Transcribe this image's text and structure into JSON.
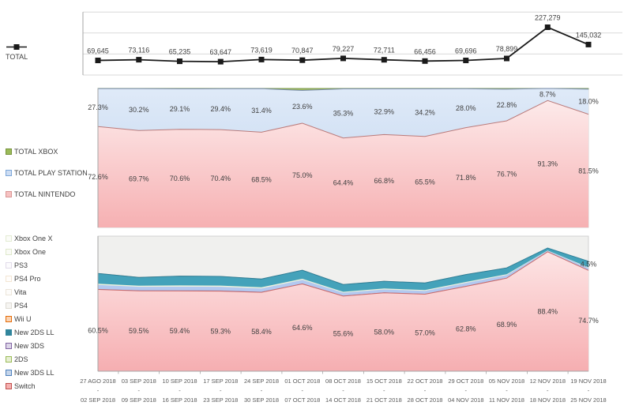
{
  "weeks": [
    {
      "from": "27 AGO 2018",
      "to": "02 SEP 2018"
    },
    {
      "from": "03 SEP 2018",
      "to": "09 SEP 2018"
    },
    {
      "from": "10 SEP 2018",
      "to": "16 SEP 2018"
    },
    {
      "from": "17 SEP 2018",
      "to": "23 SEP 2018"
    },
    {
      "from": "24 SEP 2018",
      "to": "30 SEP 2018"
    },
    {
      "from": "01 OCT 2018",
      "to": "07 OCT 2018"
    },
    {
      "from": "08 OCT 2018",
      "to": "14 OCT 2018"
    },
    {
      "from": "15 OCT 2018",
      "to": "21 OCT 2018"
    },
    {
      "from": "22 OCT 2018",
      "to": "28 OCT 2018"
    },
    {
      "from": "29 OCT 2018",
      "to": "04 NOV 2018"
    },
    {
      "from": "05 NOV 2018",
      "to": "11 NOV 2018"
    },
    {
      "from": "12 NOV 2018",
      "to": "18 NOV 2018"
    },
    {
      "from": "19 NOV 2018",
      "to": "25 NOV 2018"
    }
  ],
  "colors": {
    "grid": "#d9d9d9",
    "axis": "#a6a6a6",
    "plot_border": "#c9c9c9",
    "data_label": "#404040",
    "date_label": "#595959"
  },
  "chart_data": [
    {
      "id": "total-units",
      "type": "line",
      "legend_label": "TOTAL",
      "line_color": "#1a1a1a",
      "marker": "square",
      "categories": [
        "27 AGO 2018 - 02 SEP 2018",
        "03 SEP 2018 - 09 SEP 2018",
        "10 SEP 2018 - 16 SEP 2018",
        "17 SEP 2018 - 23 SEP 2018",
        "24 SEP 2018 - 30 SEP 2018",
        "01 OCT 2018 - 07 OCT 2018",
        "08 OCT 2018 - 14 OCT 2018",
        "15 OCT 2018 - 21 OCT 2018",
        "22 OCT 2018 - 28 OCT 2018",
        "29 OCT 2018 - 04 NOV 2018",
        "05 NOV 2018 - 11 NOV 2018",
        "12 NOV 2018 - 18 NOV 2018",
        "19 NOV 2018 - 25 NOV 2018"
      ],
      "values": [
        69645,
        73116,
        65235,
        63647,
        73619,
        70847,
        79227,
        72711,
        66456,
        69696,
        78899,
        227279,
        145032
      ],
      "ylim": [
        0,
        300000
      ],
      "gridline_step": 100000,
      "grid": true,
      "legend_position": "left"
    },
    {
      "id": "platform-share",
      "type": "area",
      "stacked_100": true,
      "legend_position": "left",
      "legend": [
        {
          "label": "TOTAL XBOX",
          "fill": "#9bbb59",
          "border": "#77933c"
        },
        {
          "label": "TOTAL PLAY STATION",
          "fill": "#cdddf3",
          "border": "#7da7d9"
        },
        {
          "label": "TOTAL NINTENDO",
          "fill": "#f6c2c2",
          "border": "#d99694"
        }
      ],
      "series": [
        {
          "name": "TOTAL NINTENDO",
          "values": [
            72.6,
            69.7,
            70.6,
            70.4,
            68.5,
            75.0,
            64.4,
            66.8,
            65.5,
            71.8,
            76.7,
            91.3,
            81.5
          ],
          "show_labels": true,
          "fill_top": "#fdeaea",
          "fill_bottom": "#f6b0b2",
          "border": "#ba7b7b"
        },
        {
          "name": "TOTAL PLAY STATION",
          "values": [
            27.3,
            30.2,
            29.1,
            29.4,
            31.4,
            23.6,
            35.3,
            32.9,
            34.2,
            28.0,
            22.8,
            8.7,
            18.0
          ],
          "show_labels": true,
          "fill_top": "#dfeaf8",
          "fill_bottom": "#bfd3ee",
          "border": "#7d8fb0"
        },
        {
          "name": "TOTAL XBOX",
          "values": [
            0.1,
            0.1,
            0.3,
            0.2,
            0.1,
            1.4,
            0.3,
            0.3,
            0.3,
            0.2,
            0.5,
            0.0,
            0.5
          ],
          "show_labels": false,
          "estimated": true,
          "note": "remainder to 100%, not labeled in source",
          "fill": "#9fba5e",
          "border": "#6d8f3e"
        }
      ]
    },
    {
      "id": "model-share",
      "type": "area",
      "stacked_100": true,
      "legend_position": "left",
      "legend": [
        {
          "label": "Xbox One X",
          "fill": "#fbfcf8",
          "border": "#e3ecd3"
        },
        {
          "label": "Xbox One",
          "fill": "#fafbf6",
          "border": "#dfe9cc"
        },
        {
          "label": "PS3",
          "fill": "#fcfbfd",
          "border": "#e2dcea"
        },
        {
          "label": "PS4 Pro",
          "fill": "#fffdfb",
          "border": "#f3e6d4"
        },
        {
          "label": "Vita",
          "fill": "#fdfcfa",
          "border": "#ece5da"
        },
        {
          "label": "PS4",
          "fill": "#f6f5f2",
          "border": "#dedbd4"
        },
        {
          "label": "Wii U",
          "fill": "#fbd4b4",
          "border": "#e46c0a"
        },
        {
          "label": "New 2DS LL",
          "fill": "#31859c",
          "border": "#31859c"
        },
        {
          "label": "New 3DS",
          "fill": "#dcd5e8",
          "border": "#8064a2"
        },
        {
          "label": "2DS",
          "fill": "#e7efd3",
          "border": "#9bbb59"
        },
        {
          "label": "New 3DS LL",
          "fill": "#c5d5ea",
          "border": "#4f81bd"
        },
        {
          "label": "Switch",
          "fill": "#f5b0b0",
          "border": "#c0504d"
        }
      ],
      "series": [
        {
          "name": "Switch",
          "values": [
            60.5,
            59.5,
            59.4,
            59.3,
            58.4,
            64.6,
            55.6,
            58.0,
            57.0,
            62.8,
            68.9,
            88.4,
            74.7
          ],
          "show_labels": true,
          "fill_top": "#fde5e5",
          "fill_bottom": "#f6aeb1",
          "border": "#c96a6a"
        },
        {
          "name": "New 3DS",
          "values": [
            0.4,
            0.4,
            0.4,
            0.4,
            0.4,
            0.4,
            0.3,
            0.3,
            0.3,
            0.3,
            0.3,
            0.1,
            0.2
          ],
          "estimated": true,
          "note": "band width estimated, not labeled in source",
          "fill": "#8b7ab2"
        },
        {
          "name": "New 3DS LL",
          "values": [
            3.0,
            2.6,
            2.8,
            2.8,
            2.5,
            2.6,
            2.2,
            2.2,
            2.1,
            2.3,
            2.0,
            0.7,
            1.6
          ],
          "estimated": true,
          "note": "band width estimated, not labeled in source",
          "fill": "#b3c9f0"
        },
        {
          "name": "2DS",
          "values": [
            0.9,
            0.8,
            0.9,
            0.9,
            0.8,
            0.8,
            0.7,
            0.7,
            0.7,
            0.7,
            0.6,
            0.2,
            0.4
          ],
          "estimated": true,
          "note": "band width estimated, not labeled in source",
          "fill": "#ecf1dc"
        },
        {
          "name": "New 2DS LL",
          "values": [
            7.6,
            6.2,
            6.9,
            6.8,
            6.2,
            6.4,
            5.4,
            5.4,
            5.2,
            5.5,
            4.7,
            1.8,
            4.5
          ],
          "estimated": true,
          "last_label": "4.5%",
          "note": "only final point labeled 4.5% in source",
          "fill": "#44a2ba",
          "border": "#2f7f98"
        },
        {
          "name": "Wii U",
          "values": [
            0.2,
            0.2,
            0.2,
            0.2,
            0.2,
            0.2,
            0.2,
            0.2,
            0.2,
            0.2,
            0.2,
            0.1,
            0.1
          ],
          "estimated": true,
          "note": "band width estimated, not labeled in source",
          "fill": "#f19b5a"
        },
        {
          "name": "PlayStation & Xbox models (remainder)",
          "remainder": true,
          "fill": "#f0f0ee"
        }
      ]
    }
  ]
}
